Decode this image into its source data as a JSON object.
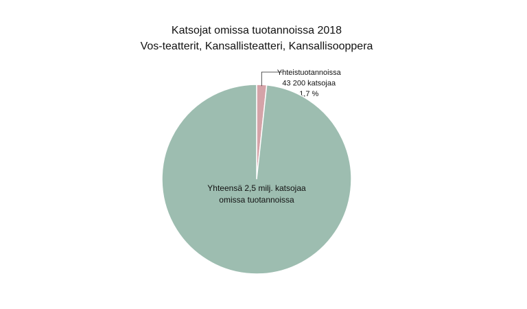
{
  "chart_data": {
    "type": "pie",
    "title": "Katsojat omissa tuotannoissa 2018",
    "subtitle": "Vos-teatterit, Kansallisteatteri, Kansallisooppera",
    "categories": [
      [
        "Yhteistuotannoissa",
        "43 200 katsojaa"
      ],
      [
        "Yhteensä 2,5 milj. katsojaa",
        "omissa tuotannoissa"
      ]
    ],
    "values": [
      1.7,
      98.3
    ],
    "value_labels": [
      "1,7 %",
      null
    ],
    "colors": [
      "#d5a3a8",
      "#9dbdb0"
    ]
  }
}
